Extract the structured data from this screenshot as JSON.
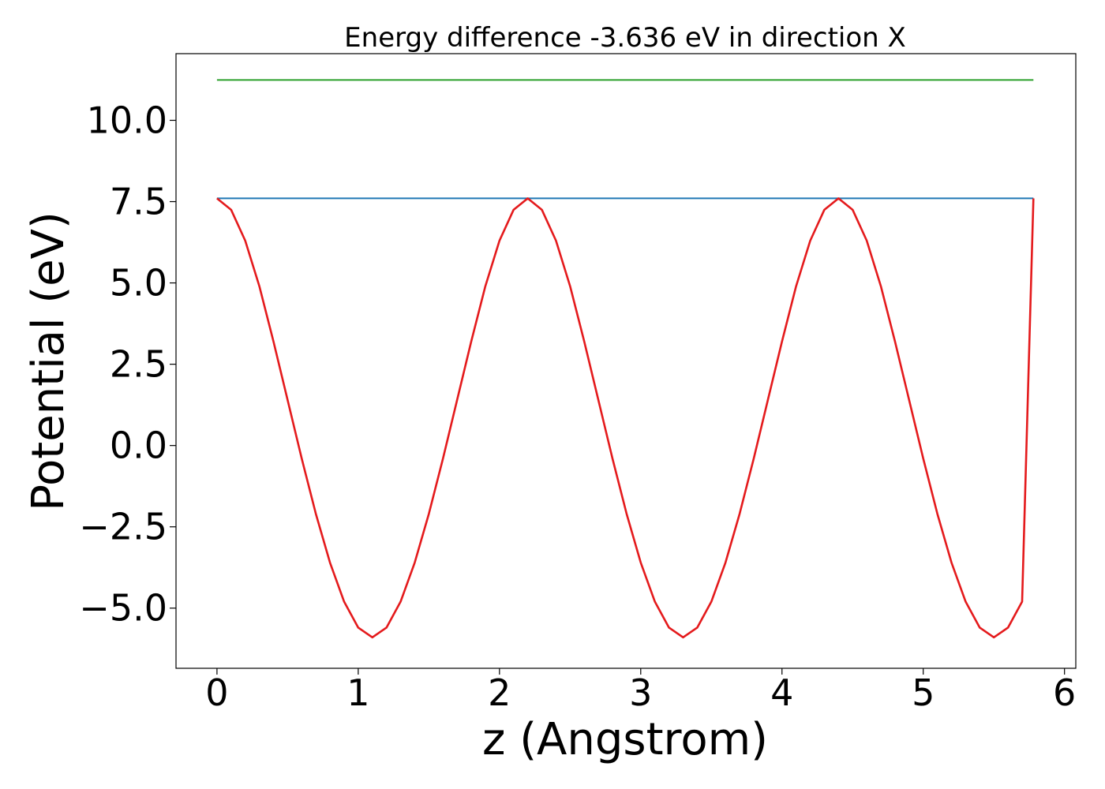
{
  "chart_data": {
    "type": "line",
    "title": "Energy difference -3.636 eV in direction X",
    "xlabel": "z (Angstrom)",
    "ylabel": "Potential (eV)",
    "xlim": [
      -0.29,
      6.08
    ],
    "ylim": [
      -6.85,
      12.05
    ],
    "xticks": [
      0,
      1,
      2,
      3,
      4,
      5,
      6
    ],
    "xtick_labels": [
      "0",
      "1",
      "2",
      "3",
      "4",
      "5",
      "6"
    ],
    "yticks": [
      -5.0,
      -2.5,
      0.0,
      2.5,
      5.0,
      7.5,
      10.0
    ],
    "ytick_labels": [
      "−5.0",
      "−2.5",
      "0.0",
      "2.5",
      "5.0",
      "7.5",
      "10.0"
    ],
    "grid": false,
    "series": [
      {
        "color": "#2ca02c",
        "x": [
          0.0,
          5.78
        ],
        "y": [
          11.24,
          11.24
        ]
      },
      {
        "color": "#1f77b4",
        "x": [
          0.0,
          5.78
        ],
        "y": [
          7.6,
          7.6
        ]
      },
      {
        "color": "#e41a1c",
        "x": [
          0.0,
          0.1,
          0.2,
          0.3,
          0.4,
          0.5,
          0.6,
          0.7,
          0.8,
          0.9,
          1.0,
          1.1,
          1.2,
          1.3,
          1.4,
          1.5,
          1.6,
          1.7,
          1.8,
          1.9,
          2.0,
          2.1,
          2.2,
          2.3,
          2.4,
          2.5,
          2.6,
          2.7,
          2.8,
          2.9,
          3.0,
          3.1,
          3.2,
          3.3,
          3.4,
          3.5,
          3.6,
          3.7,
          3.8,
          3.9,
          4.0,
          4.1,
          4.2,
          4.3,
          4.4,
          4.5,
          4.6,
          4.7,
          4.8,
          4.9,
          5.0,
          5.1,
          5.2,
          5.3,
          5.4,
          5.5,
          5.6,
          5.7,
          5.78
        ],
        "y": [
          7.6,
          7.25,
          6.3,
          4.9,
          3.2,
          1.4,
          -0.4,
          -2.1,
          -3.6,
          -4.8,
          -5.6,
          -5.9,
          -5.6,
          -4.8,
          -3.6,
          -2.1,
          -0.4,
          1.4,
          3.2,
          4.9,
          6.3,
          7.25,
          7.6,
          7.25,
          6.3,
          4.9,
          3.2,
          1.4,
          -0.4,
          -2.1,
          -3.6,
          -4.8,
          -5.6,
          -5.9,
          -5.6,
          -4.8,
          -3.6,
          -2.1,
          -0.4,
          1.4,
          3.2,
          4.9,
          6.3,
          7.25,
          7.6,
          7.25,
          6.3,
          4.9,
          3.2,
          1.4,
          -0.4,
          -2.1,
          -3.6,
          -4.8,
          -5.6,
          -5.9,
          -5.6,
          -4.8,
          7.6
        ]
      }
    ]
  }
}
